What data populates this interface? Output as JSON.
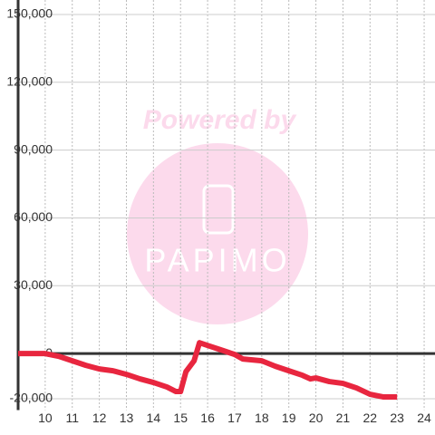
{
  "chart_data": {
    "type": "line",
    "watermark": {
      "text": "Powered by",
      "logo": "PAPIMO"
    },
    "x": [
      9,
      10,
      10.5,
      11,
      11.5,
      12,
      12.5,
      13,
      13.5,
      14,
      14.5,
      14.83,
      15,
      15.2,
      15.5,
      15.7,
      16,
      16.5,
      17,
      17.3,
      18,
      18.5,
      19,
      19.5,
      19.8,
      20,
      20.5,
      21,
      21.5,
      22,
      22.5,
      23
    ],
    "series": [
      {
        "color": "#e8263f",
        "values": [
          0,
          0,
          -1200,
          -3200,
          -5200,
          -6800,
          -7600,
          -9200,
          -11200,
          -12800,
          -14800,
          -16800,
          -16800,
          -8000,
          -3200,
          4800,
          3600,
          1600,
          -400,
          -2400,
          -3200,
          -5600,
          -7600,
          -9600,
          -11200,
          -10800,
          -12400,
          -13200,
          -15200,
          -18000,
          -19200,
          -19200
        ]
      }
    ],
    "xlim": [
      9,
      24.4
    ],
    "xticks": [
      10,
      11,
      12,
      13,
      14,
      15,
      16,
      17,
      18,
      19,
      20,
      21,
      22,
      23,
      24
    ],
    "ylim": [
      -25000,
      155000
    ],
    "yticks": [
      {
        "value": -20000,
        "label": "-20,000"
      },
      0,
      {
        "value": 30000,
        "label": "30,000"
      },
      {
        "value": 60000,
        "label": "60,000"
      },
      {
        "value": 90000,
        "label": "90,000"
      },
      {
        "value": 120000,
        "label": "120,000"
      },
      {
        "value": 150000,
        "label": "150,000"
      }
    ],
    "grid": true
  }
}
